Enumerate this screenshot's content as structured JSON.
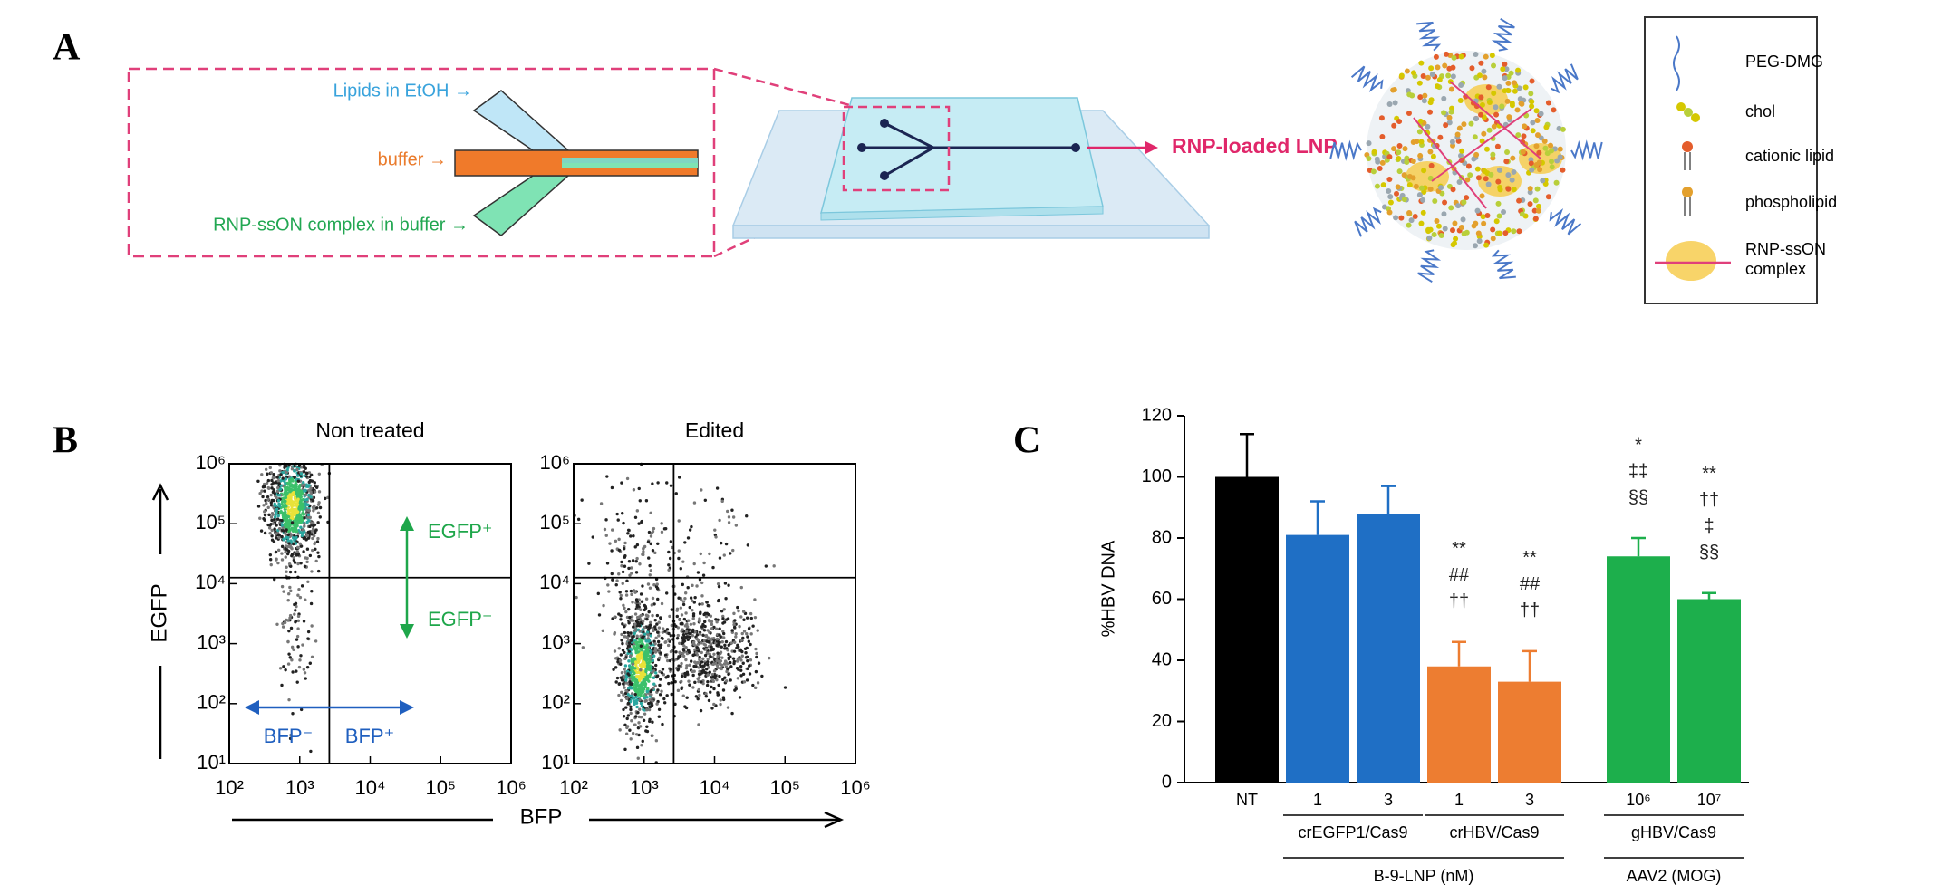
{
  "panel_labels": [
    "A",
    "B",
    "C"
  ],
  "diagram": {
    "inputs": [
      "Lipids in EtOH →",
      "buffer →",
      "RNP-ssON complex in buffer →"
    ],
    "output": "RNP-loaded LNP",
    "legend": [
      "PEG-DMG",
      "chol",
      "cationic lipid",
      "phospholipid"
    ],
    "legend_complex": [
      "RNP-ssON",
      "complex"
    ]
  },
  "flow": {
    "titles": [
      "Non treated",
      "Edited"
    ],
    "x_label": "BFP",
    "y_label": "EGFP",
    "log_scale": true,
    "xlim": [
      100,
      1000000
    ],
    "ylim": [
      10,
      1000000
    ],
    "xticks": [
      {
        "value": 100,
        "label": "10²"
      },
      {
        "value": 1000,
        "label": "10³"
      },
      {
        "value": 10000,
        "label": "10⁴"
      },
      {
        "value": 100000,
        "label": "10⁵"
      },
      {
        "value": 1000000,
        "label": "10⁶"
      }
    ],
    "yticks": [
      {
        "value": 10,
        "label": "10¹"
      },
      {
        "value": 100,
        "label": "10²"
      },
      {
        "value": 1000,
        "label": "10³"
      },
      {
        "value": 10000,
        "label": "10⁴"
      },
      {
        "value": 100000,
        "label": "10⁵"
      },
      {
        "value": 1000000,
        "label": "10⁶"
      }
    ],
    "gate_labels": [
      "EGFP⁺",
      "EGFP⁻",
      "BFP⁻",
      "BFP⁺"
    ]
  },
  "chart_data": {
    "type": "bar",
    "y_label": "%HBV DNA",
    "categories": [
      "NT",
      "1",
      "3",
      "1",
      "3",
      "10⁶",
      "10⁷"
    ],
    "values": [
      100,
      81,
      88,
      38,
      33,
      74,
      60
    ],
    "errors": [
      14,
      11,
      9,
      8,
      10,
      6,
      2
    ],
    "colors": [
      "#000000",
      "#1f6fc5",
      "#1f6fc5",
      "#ed7d31",
      "#ed7d31",
      "#1daf4c",
      "#1daf4c"
    ],
    "ylim": [
      0,
      120
    ],
    "yticks": [
      0,
      20,
      40,
      60,
      80,
      100,
      120
    ],
    "annotations": [
      null,
      null,
      null,
      [
        "**",
        "##",
        "††"
      ],
      [
        "**",
        "##",
        "††"
      ],
      [
        "*",
        "‡‡",
        "§§"
      ],
      [
        "**",
        "††",
        "‡",
        "§§"
      ]
    ],
    "group_labels": [
      "crEGFP1/Cas9",
      "crHBV/Cas9",
      "gHBV/Cas9"
    ],
    "super_group_labels": [
      "B-9-LNP (nM)",
      "AAV2 (MOG)"
    ]
  }
}
